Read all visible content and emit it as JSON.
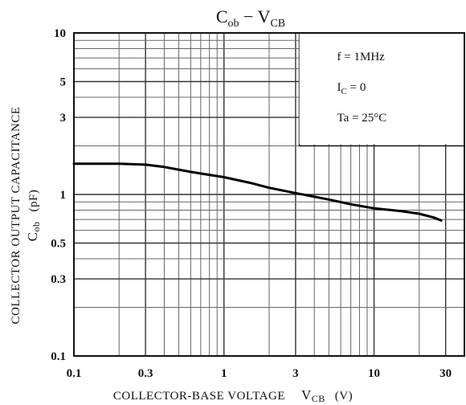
{
  "chart_data": {
    "type": "line",
    "title": {
      "main": "C",
      "main_sub": "ob",
      "sep": " − ",
      "second": "V",
      "second_sub": "CB"
    },
    "xlabel": {
      "text": "COLLECTOR-BASE VOLTAGE",
      "sym": "V",
      "sub": "CB",
      "unit": "(V)"
    },
    "ylabel": {
      "text": "COLLECTOR OUTPUT CAPACITANCE",
      "sym": "C",
      "sub": "ob",
      "unit": "(pF)"
    },
    "x_scale": "log",
    "y_scale": "log",
    "xlim": [
      0.1,
      40
    ],
    "ylim": [
      0.1,
      10
    ],
    "x_ticks": [
      "0.1",
      "0.3",
      "1",
      "3",
      "10",
      "30"
    ],
    "y_ticks": [
      "10",
      "5",
      "3",
      "1",
      "0.5",
      "0.3",
      "0.1"
    ],
    "conditions": [
      {
        "text": "f = 1MHz"
      },
      {
        "text": "I",
        "sub": "C",
        "tail": " = 0"
      },
      {
        "text": "Ta = 25°C"
      }
    ],
    "series": [
      {
        "x": [
          0.1,
          0.15,
          0.2,
          0.3,
          0.4,
          0.6,
          1,
          1.5,
          2,
          3,
          5,
          7,
          10,
          15,
          20,
          25,
          28
        ],
        "y": [
          1.55,
          1.55,
          1.55,
          1.53,
          1.48,
          1.38,
          1.28,
          1.18,
          1.1,
          1.02,
          0.93,
          0.87,
          0.82,
          0.79,
          0.76,
          0.72,
          0.69
        ]
      }
    ]
  }
}
